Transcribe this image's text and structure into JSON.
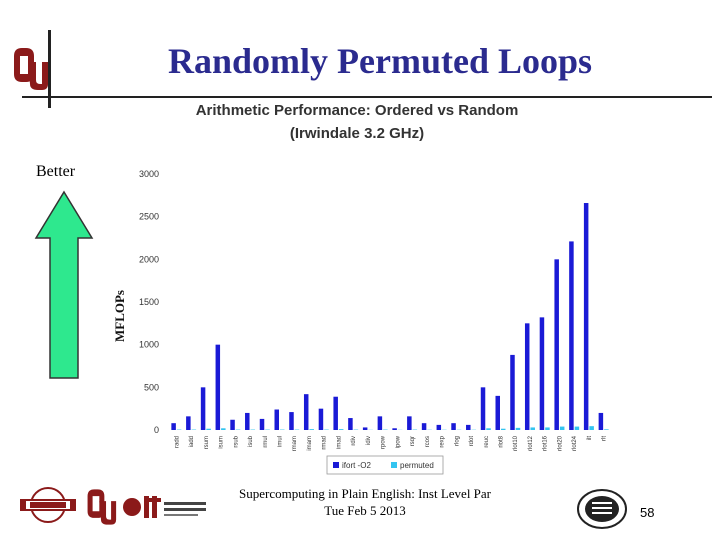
{
  "slide": {
    "title": "Randomly Permuted Loops",
    "better_label": "Better",
    "footer_line1": "Supercomputing in Plain English: Inst Level Par",
    "footer_line2": "Tue Feb 5 2013",
    "page_number": "58"
  },
  "colors": {
    "title": "#2b2b8f",
    "series_ordered": "#1a1ad6",
    "series_permuted": "#33c4f0",
    "arrow_fill": "#2ee88e"
  },
  "icons": [
    "ou-logo-icon",
    "up-arrow-icon",
    "oscer-logo-icon",
    "it-logo-icon",
    "university-seal-icon"
  ],
  "chart_data": {
    "type": "bar",
    "title": "Arithmetic Performance: Ordered vs Random",
    "subtitle": "(Irwindale 3.2 GHz)",
    "ylabel": "MFLOPs",
    "xlabel": "",
    "ylim": [
      0,
      3000
    ],
    "yticks": [
      0,
      500,
      1000,
      1500,
      2000,
      2500,
      3000
    ],
    "legend_position": "bottom",
    "grid": false,
    "categories": [
      "radd",
      "iadd",
      "rsum",
      "isum",
      "rsub",
      "isub",
      "rmul",
      "imul",
      "rmam",
      "imam",
      "rmad",
      "imad",
      "rdiv",
      "idiv",
      "rpow",
      "ipow",
      "rsqr",
      "rcos",
      "rexp",
      "rlog",
      "rdot",
      "reuc",
      "rlot8",
      "rlot10",
      "rlot12",
      "rlot16",
      "rlot20",
      "rlot24",
      "ilt",
      "rlt"
    ],
    "series": [
      {
        "name": "ifort -O2",
        "values": [
          80,
          160,
          500,
          1000,
          120,
          200,
          130,
          240,
          210,
          420,
          250,
          390,
          140,
          30,
          160,
          20,
          160,
          80,
          60,
          80,
          60,
          500,
          400,
          880,
          1250,
          1320,
          2000,
          2210,
          2660,
          200
        ]
      },
      {
        "name": "permuted",
        "values": [
          5,
          5,
          15,
          20,
          5,
          5,
          5,
          5,
          5,
          10,
          5,
          10,
          5,
          2,
          5,
          2,
          5,
          3,
          3,
          3,
          3,
          20,
          15,
          25,
          30,
          30,
          40,
          40,
          45,
          8
        ]
      }
    ]
  }
}
